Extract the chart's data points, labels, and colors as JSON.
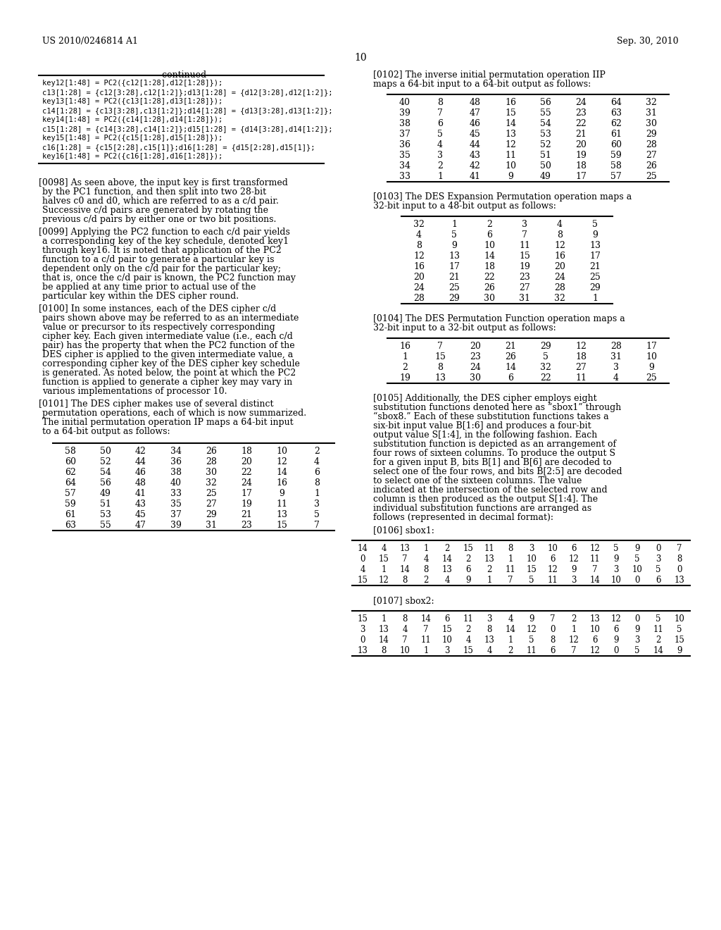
{
  "header_left": "US 2010/0246814 A1",
  "header_right": "Sep. 30, 2010",
  "page_number": "10",
  "continued_title": "-continued",
  "continued_code": [
    "key12[1:48] = PC2({c12[1:28],d12[1:28]});",
    "c13[1:28] = {c12[3:28],c12[1:2]};d13[1:28] = {d12[3:28],d12[1:2]};",
    "key13[1:48] = PC2({c13[1:28],d13[1:28]});",
    "c14[1:28] = {c13[3:28],c13[1:2]};d14[1:28] = {d13[3:28],d13[1:2]};",
    "key14[1:48] = PC2({c14[1:28],d14[1:28]});",
    "c15[1:28] = {c14[3:28],c14[1:2]};d15[1:28] = {d14[3:28],d14[1:2]};",
    "key15[1:48] = PC2({c15[1:28],d15[1:28]});",
    "c16[1:28] = {c15[2:28],c15[1]};d16[1:28] = {d15[2:28],d15[1]};",
    "key16[1:48] = PC2({c16[1:28],d16[1:28]});"
  ],
  "para_0098": "[0098]   As seen above, the input key is first transformed by the PC1 function, and then split into two 28-bit halves c0 and d0, which are referred to as a c/d pair. Successive c/d pairs are generated by rotating the previous c/d pairs by either one or two bit positions.",
  "para_0099": "[0099]   Applying the PC2 function to each c/d pair yields a corresponding key of the key schedule, denoted key1 through key16. It is noted that application of the PC2 function to a c/d pair to generate a particular key is dependent only on the c/d pair for the particular key; that is, once the c/d pair is known, the PC2 function may be applied at any time prior to actual use of the particular key within the DES cipher round.",
  "para_0100": "[0100]   In some instances, each of the DES cipher c/d pairs shown above may be referred to as an intermediate value or precursor to its respectively corresponding cipher key. Each given intermediate value (i.e., each c/d pair) has the property that when the PC2 function of the DES cipher is applied to the given intermediate value, a corresponding cipher key of the DES cipher key schedule is generated. As noted below, the point at which the PC2 function is applied to generate a cipher key may vary in various implementations of processor 10.",
  "para_0101": "[0101]   The DES cipher makes use of several distinct permutation operations, each of which is now summarized. The initial permutation operation IP maps a 64-bit input to a 64-bit output as follows:",
  "para_0102": "[0102]   The inverse initial permutation operation IIP maps a 64-bit input to a 64-bit output as follows:",
  "para_0103": "[0103]   The DES Expansion Permutation operation maps a 32-bit input to a 48-bit output as follows:",
  "para_0104": "[0104]   The DES Permutation Function operation maps a 32-bit input to a 32-bit output as follows:",
  "para_0105": "[0105]   Additionally, the DES cipher employs eight substitution functions denoted here as “sbox1” through “sbox8.” Each of these substitution functions takes a six-bit input value B[1:6] and produces a four-bit output value S[1:4], in the following fashion. Each substitution function is depicted as an arrangement of four rows of sixteen columns. To produce the output S for a given input B, bits B[1] and B[6] are decoded to select one of the four rows, and bits B[2:5] are decoded to select one of the sixteen columns. The value indicated at the intersection of the selected row and column is then produced as the output S[1:4]. The individual substitution functions are arranged as follows (represented in decimal format):",
  "para_0106": "[0106]   sbox1:",
  "para_0107": "[0107]   sbox2:",
  "table_ip": [
    [
      58,
      50,
      42,
      34,
      26,
      18,
      10,
      2
    ],
    [
      60,
      52,
      44,
      36,
      28,
      20,
      12,
      4
    ],
    [
      62,
      54,
      46,
      38,
      30,
      22,
      14,
      6
    ],
    [
      64,
      56,
      48,
      40,
      32,
      24,
      16,
      8
    ],
    [
      57,
      49,
      41,
      33,
      25,
      17,
      9,
      1
    ],
    [
      59,
      51,
      43,
      35,
      27,
      19,
      11,
      3
    ],
    [
      61,
      53,
      45,
      37,
      29,
      21,
      13,
      5
    ],
    [
      63,
      55,
      47,
      39,
      31,
      23,
      15,
      7
    ]
  ],
  "table_iip": [
    [
      40,
      8,
      48,
      16,
      56,
      24,
      64,
      32
    ],
    [
      39,
      7,
      47,
      15,
      55,
      23,
      63,
      31
    ],
    [
      38,
      6,
      46,
      14,
      54,
      22,
      62,
      30
    ],
    [
      37,
      5,
      45,
      13,
      53,
      21,
      61,
      29
    ],
    [
      36,
      4,
      44,
      12,
      52,
      20,
      60,
      28
    ],
    [
      35,
      3,
      43,
      11,
      51,
      19,
      59,
      27
    ],
    [
      34,
      2,
      42,
      10,
      50,
      18,
      58,
      26
    ],
    [
      33,
      1,
      41,
      9,
      49,
      17,
      57,
      25
    ]
  ],
  "table_expansion": [
    [
      32,
      1,
      2,
      3,
      4,
      5
    ],
    [
      4,
      5,
      6,
      7,
      8,
      9
    ],
    [
      8,
      9,
      10,
      11,
      12,
      13
    ],
    [
      12,
      13,
      14,
      15,
      16,
      17
    ],
    [
      16,
      17,
      18,
      19,
      20,
      21
    ],
    [
      20,
      21,
      22,
      23,
      24,
      25
    ],
    [
      24,
      25,
      26,
      27,
      28,
      29
    ],
    [
      28,
      29,
      30,
      31,
      32,
      1
    ]
  ],
  "table_perm": [
    [
      16,
      7,
      20,
      21,
      29,
      12,
      28,
      17
    ],
    [
      1,
      15,
      23,
      26,
      5,
      18,
      31,
      10
    ],
    [
      2,
      8,
      24,
      14,
      32,
      27,
      3,
      9
    ],
    [
      19,
      13,
      30,
      6,
      22,
      11,
      4,
      25
    ]
  ],
  "table_sbox1": [
    [
      14,
      4,
      13,
      1,
      2,
      15,
      11,
      8,
      3,
      10,
      6,
      12,
      5,
      9,
      0,
      7
    ],
    [
      0,
      15,
      7,
      4,
      14,
      2,
      13,
      1,
      10,
      6,
      12,
      11,
      9,
      5,
      3,
      8
    ],
    [
      4,
      1,
      14,
      8,
      13,
      6,
      2,
      11,
      15,
      12,
      9,
      7,
      3,
      10,
      5,
      0
    ],
    [
      15,
      12,
      8,
      2,
      4,
      9,
      1,
      7,
      5,
      11,
      3,
      14,
      10,
      0,
      6,
      13
    ]
  ],
  "table_sbox2": [
    [
      15,
      1,
      8,
      14,
      6,
      11,
      3,
      4,
      9,
      7,
      2,
      13,
      12,
      0,
      5,
      10
    ],
    [
      3,
      13,
      4,
      7,
      15,
      2,
      8,
      14,
      12,
      0,
      1,
      10,
      6,
      9,
      11,
      5
    ],
    [
      0,
      14,
      7,
      11,
      10,
      4,
      13,
      1,
      5,
      8,
      12,
      6,
      9,
      3,
      2,
      15
    ],
    [
      13,
      8,
      10,
      1,
      3,
      15,
      4,
      2,
      11,
      6,
      7,
      12,
      0,
      5,
      14,
      9
    ]
  ]
}
